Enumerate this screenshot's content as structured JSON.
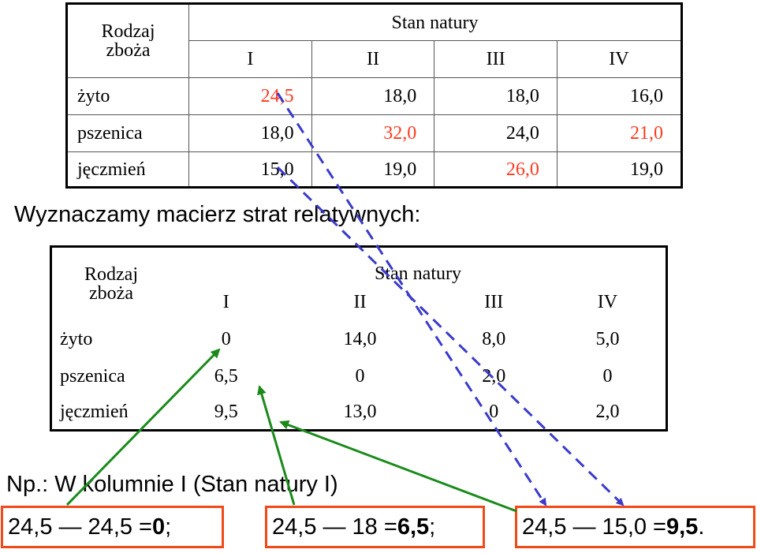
{
  "table1": {
    "corner_label_line1": "Rodzaj",
    "corner_label_line2": "zboża",
    "title": "Stan natury",
    "columns": [
      "I",
      "II",
      "III",
      "IV"
    ],
    "rows": [
      {
        "label": "żyto",
        "values": [
          "24,5",
          "18,0",
          "18,0",
          "16,0"
        ],
        "highlight": [
          0
        ]
      },
      {
        "label": "pszenica",
        "values": [
          "18,0",
          "32,0",
          "24,0",
          "21,0"
        ],
        "highlight": [
          1,
          3
        ]
      },
      {
        "label": "jęczmień",
        "values": [
          "15,0",
          "19,0",
          "26,0",
          "19,0"
        ],
        "highlight": [
          2
        ]
      }
    ]
  },
  "heading": "Wyznaczamy macierz strat relatywnych:",
  "table2": {
    "corner_label_line1": "Rodzaj",
    "corner_label_line2": "zboża",
    "title": "Stan natury",
    "columns": [
      "I",
      "II",
      "III",
      "IV"
    ],
    "rows": [
      {
        "label": "żyto",
        "values": [
          "0",
          "14,0",
          "8,0",
          "5,0"
        ]
      },
      {
        "label": "pszenica",
        "values": [
          "6,5",
          "0",
          "2,0",
          "0"
        ]
      },
      {
        "label": "jęczmień",
        "values": [
          "9,5",
          "13,0",
          "0",
          "2,0"
        ]
      }
    ]
  },
  "example": {
    "intro": "Np.: W kolumnie I (Stan natury I)",
    "calc1": {
      "expr": "24,5 — 24,5 = ",
      "result": "0",
      "end": ";"
    },
    "calc2": {
      "expr": "24,5 — 18 = ",
      "result": "6,5",
      "end": ";"
    },
    "calc3": {
      "expr": "24,5 — 15,0 = ",
      "result": "9,5",
      "end": "."
    }
  },
  "colors": {
    "highlight_red": "#ff3b1f",
    "box_border": "#f04a1a",
    "arrow_green": "#1a8a1a",
    "arrow_blue": "#3a3acc"
  }
}
